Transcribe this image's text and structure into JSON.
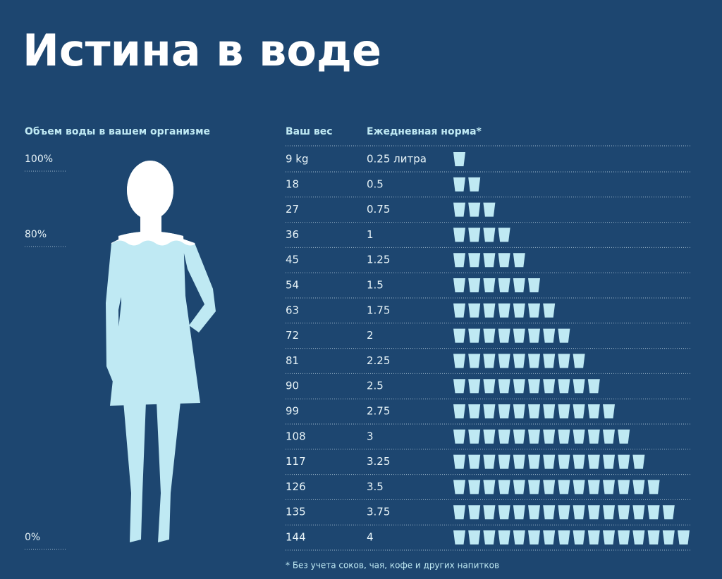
{
  "header": {
    "title": "Истина в воде"
  },
  "body_scale": {
    "title": "Объем воды в вашем организме",
    "labels": [
      "100%",
      "80%",
      "0%"
    ]
  },
  "table": {
    "columns": [
      "Ваш вес",
      "Ежедневная норма*"
    ],
    "rows": [
      {
        "weight": "9 kg",
        "norm": "0.25 литра",
        "glasses": 1
      },
      {
        "weight": "18",
        "norm": "0.5",
        "glasses": 2
      },
      {
        "weight": "27",
        "norm": "0.75",
        "glasses": 3
      },
      {
        "weight": "36",
        "norm": "1",
        "glasses": 4
      },
      {
        "weight": "45",
        "norm": "1.25",
        "glasses": 5
      },
      {
        "weight": "54",
        "norm": "1.5",
        "glasses": 6
      },
      {
        "weight": "63",
        "norm": "1.75",
        "glasses": 7
      },
      {
        "weight": "72",
        "norm": "2",
        "glasses": 8
      },
      {
        "weight": "81",
        "norm": "2.25",
        "glasses": 9
      },
      {
        "weight": "90",
        "norm": "2.5",
        "glasses": 10
      },
      {
        "weight": "99",
        "norm": "2.75",
        "glasses": 11
      },
      {
        "weight": "108",
        "norm": "3",
        "glasses": 12
      },
      {
        "weight": "117",
        "norm": "3.25",
        "glasses": 13
      },
      {
        "weight": "126",
        "norm": "3.5",
        "glasses": 14
      },
      {
        "weight": "135",
        "norm": "3.75",
        "glasses": 15
      },
      {
        "weight": "144",
        "norm": "4",
        "glasses": 16
      }
    ],
    "footnote": "* Без учета соков, чая, кофе и других напитков"
  }
}
